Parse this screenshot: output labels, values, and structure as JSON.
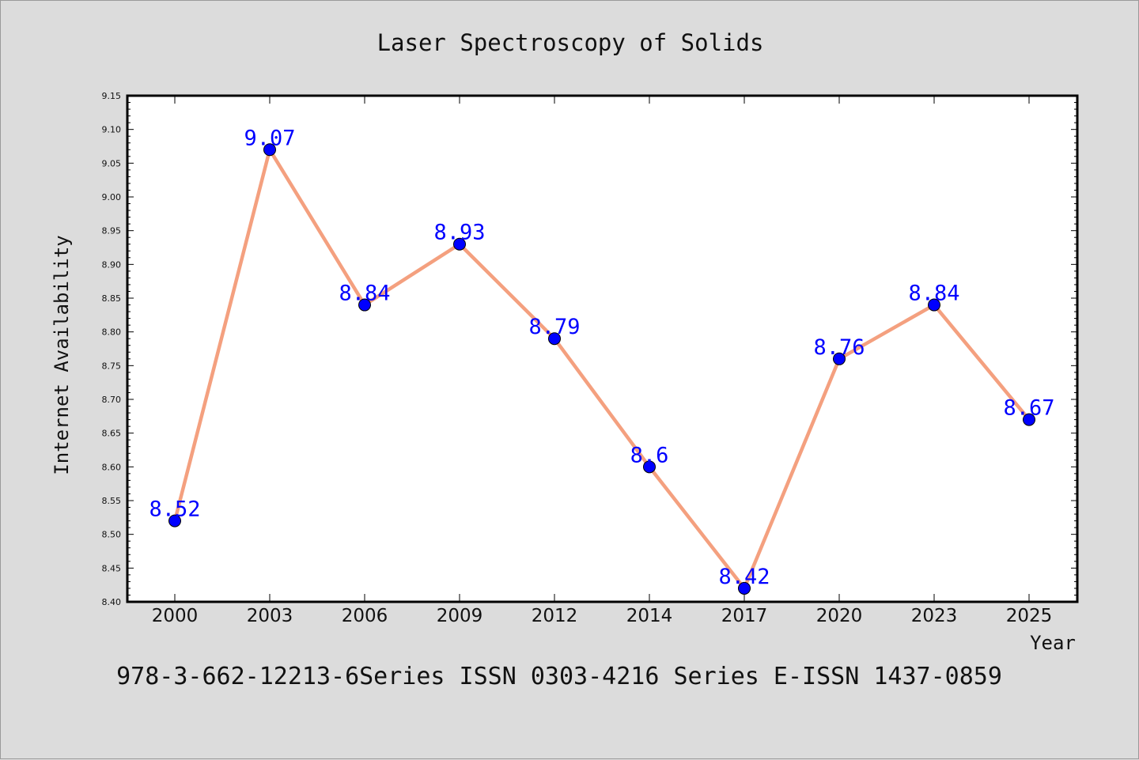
{
  "chart_data": {
    "type": "line",
    "title": "Laser Spectroscopy of Solids",
    "xlabel": "Year",
    "ylabel": "Internet Availability",
    "categories": [
      "2000",
      "2003",
      "2006",
      "2009",
      "2012",
      "2014",
      "2017",
      "2020",
      "2023",
      "2025"
    ],
    "series": [
      {
        "values": [
          8.52,
          9.07,
          8.84,
          8.93,
          8.79,
          8.6,
          8.42,
          8.76,
          8.84,
          8.67
        ],
        "labels": [
          "8.52",
          "9.07",
          "8.84",
          "8.93",
          "8.79",
          "8.6",
          "8.42",
          "8.76",
          "8.84",
          "8.67"
        ],
        "line_color": "#f4a07f",
        "marker_color": "#0000ff"
      }
    ],
    "ylim": [
      8.4,
      9.15
    ],
    "y_ticks": [
      "8.40",
      "8.45",
      "8.50",
      "8.55",
      "8.60",
      "8.65",
      "8.70",
      "8.75",
      "8.80",
      "8.85",
      "8.90",
      "8.95",
      "9.00",
      "9.05",
      "9.10",
      "9.15"
    ],
    "grid": false,
    "background_color": "#dcdcdc",
    "plot_background_color": "#ffffff"
  },
  "footer": "978-3-662-12213-6Series ISSN 0303-4216 Series E-ISSN 1437-0859"
}
